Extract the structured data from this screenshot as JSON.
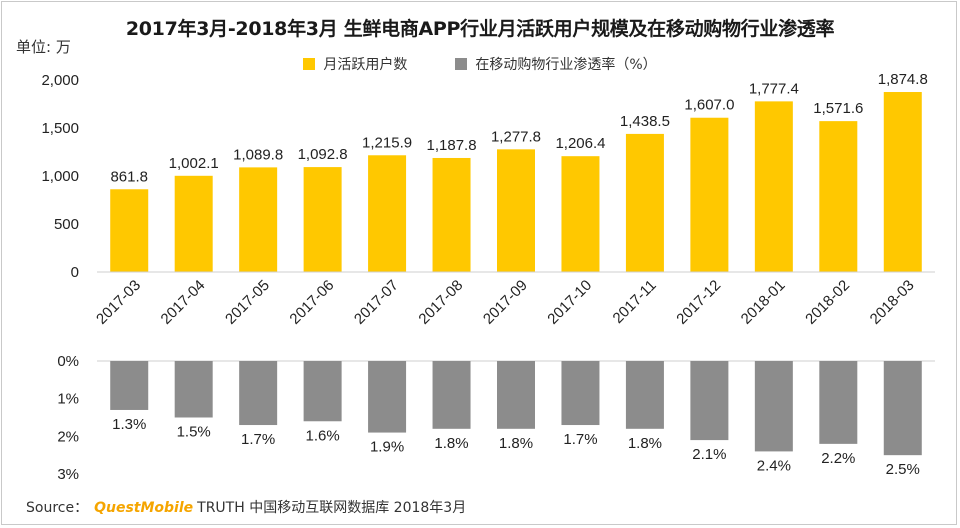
{
  "title": "2017年3月-2018年3月 生鲜电商APP行业月活跃用户规模及在移动购物行业渗透率",
  "unit_label": "单位: 万",
  "legend": [
    {
      "label": "月活跃用户数",
      "color": "#FFC800"
    },
    {
      "label": "在移动购物行业渗透率（%）",
      "color": "#8C8C8C"
    }
  ],
  "source": {
    "prefix": "Source：",
    "brand": "QuestMobile",
    "text": "TRUTH 中国移动互联网数据库 2018年3月"
  },
  "chart_data": [
    {
      "type": "bar",
      "name": "月活跃用户数",
      "categories": [
        "2017-03",
        "2017-04",
        "2017-05",
        "2017-06",
        "2017-07",
        "2017-08",
        "2017-09",
        "2017-10",
        "2017-11",
        "2017-12",
        "2018-01",
        "2018-02",
        "2018-03"
      ],
      "values": [
        861.8,
        1002.1,
        1089.8,
        1092.8,
        1215.9,
        1187.8,
        1277.8,
        1206.4,
        1438.5,
        1607.0,
        1777.4,
        1571.6,
        1874.8
      ],
      "value_labels": [
        "861.8",
        "1,002.1",
        "1,089.8",
        "1,092.8",
        "1,215.9",
        "1,187.8",
        "1,277.8",
        "1,206.4",
        "1,438.5",
        "1,607.0",
        "1,777.4",
        "1,571.6",
        "1,874.8"
      ],
      "ylim": [
        0,
        2000
      ],
      "yticks": [
        0,
        500,
        1000,
        1500,
        2000
      ],
      "ytick_labels": [
        "0",
        "500",
        "1,000",
        "1,500",
        "2,000"
      ],
      "color": "#FFC800"
    },
    {
      "type": "bar",
      "name": "在移动购物行业渗透率（%）",
      "orientation": "inverted",
      "categories": [
        "2017-03",
        "2017-04",
        "2017-05",
        "2017-06",
        "2017-07",
        "2017-08",
        "2017-09",
        "2017-10",
        "2017-11",
        "2017-12",
        "2018-01",
        "2018-02",
        "2018-03"
      ],
      "values": [
        1.3,
        1.5,
        1.7,
        1.6,
        1.9,
        1.8,
        1.8,
        1.7,
        1.8,
        2.1,
        2.4,
        2.2,
        2.5
      ],
      "value_labels": [
        "1.3%",
        "1.5%",
        "1.7%",
        "1.6%",
        "1.9%",
        "1.8%",
        "1.8%",
        "1.7%",
        "1.8%",
        "2.1%",
        "2.4%",
        "2.2%",
        "2.5%"
      ],
      "ylim": [
        0,
        3
      ],
      "yticks": [
        0,
        1,
        2,
        3
      ],
      "ytick_labels": [
        "0%",
        "1%",
        "2%",
        "3%"
      ],
      "color": "#8C8C8C"
    }
  ]
}
